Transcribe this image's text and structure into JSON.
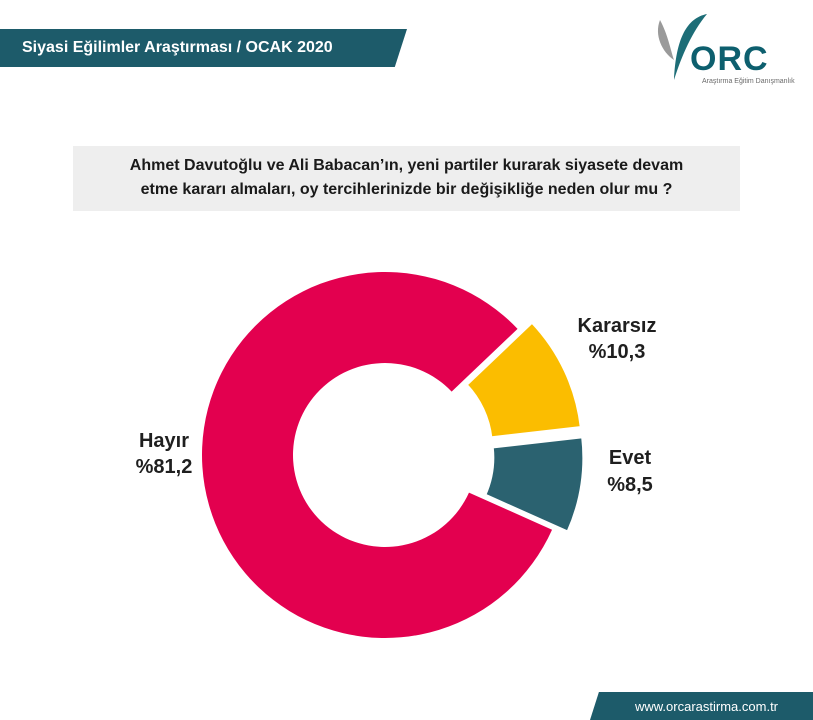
{
  "header": {
    "title": "Siyasi Eğilimler Araştırması  / OCAK 2020"
  },
  "logo": {
    "text": "ORC",
    "subtitle": "Araştırma Eğitim Danışmanlık"
  },
  "question": {
    "line1": "Ahmet Davutoğlu ve Ali Babacan’ın, yeni partiler kurarak siyasete devam",
    "line2": "etme kararı almaları, oy tercihlerinizde bir değişikliğe neden olur mu ?"
  },
  "chart_data": {
    "type": "pie",
    "donut": true,
    "title": "",
    "categories": [
      "Hayır",
      "Kararsız",
      "Evet"
    ],
    "values": [
      81.2,
      10.3,
      8.5
    ],
    "labels": [
      "%81,2",
      "%10,3",
      "%8,5"
    ],
    "colors": [
      "#e3004f",
      "#fbbd00",
      "#2b6270"
    ],
    "exploded_slices": [
      "Kararsız",
      "Evet"
    ]
  },
  "footer": {
    "url": "www.orcarastirma.com.tr"
  },
  "colors": {
    "banner": "#1d5b6a",
    "logo_text": "#0d5f6e",
    "logo_leaf_grey": "#9a9a9a",
    "logo_leaf_teal": "#1d6d77"
  }
}
